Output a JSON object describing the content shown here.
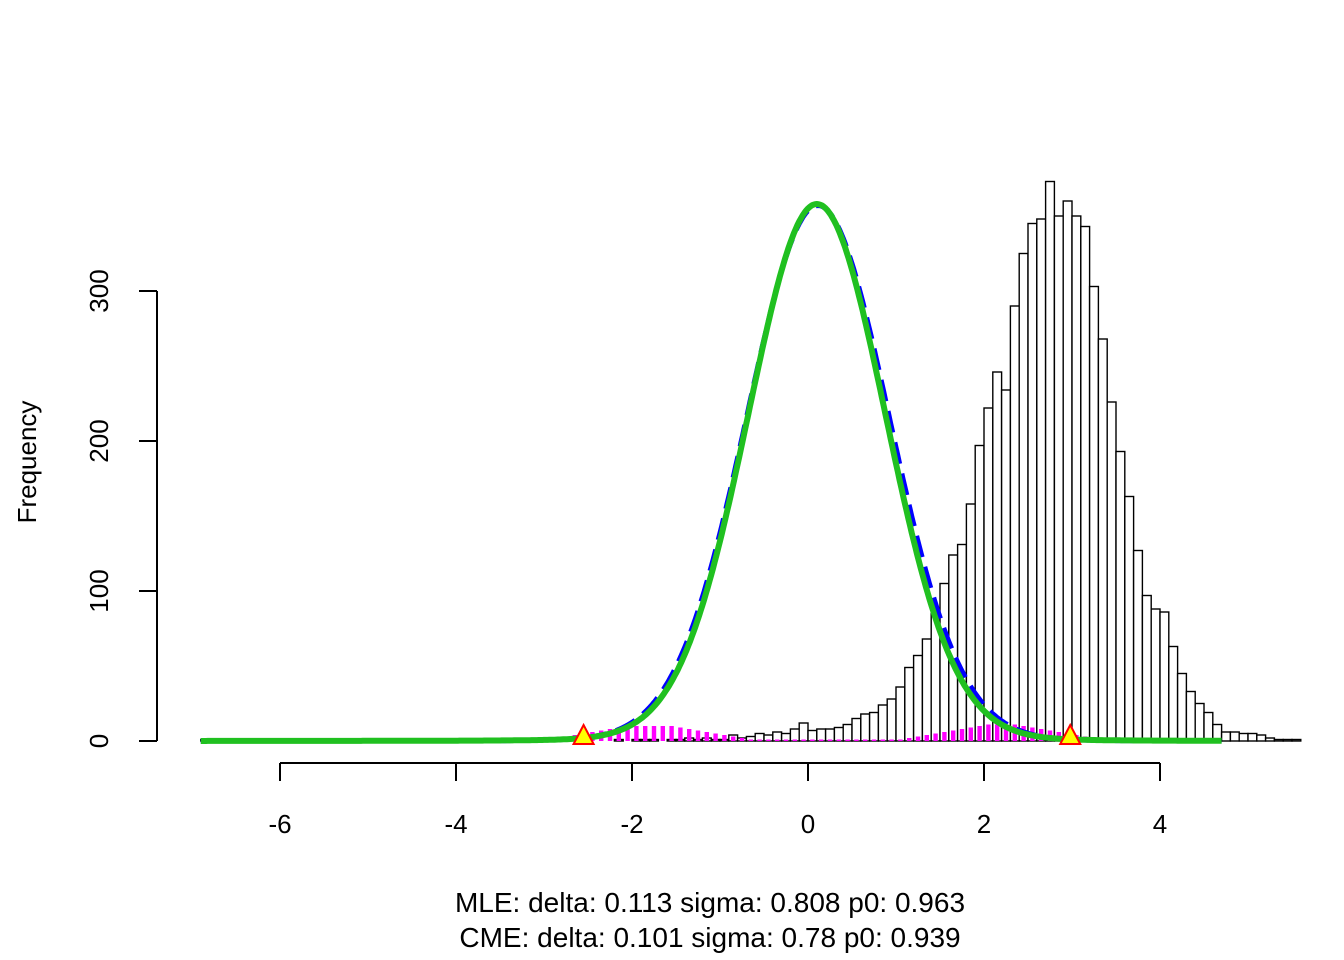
{
  "chart_data": {
    "type": "bar",
    "title": "",
    "xlabel": "",
    "ylabel": "Frequency",
    "xlim": [
      -6.9,
      4.7
    ],
    "ylim": [
      0,
      360
    ],
    "x_ticks": [
      -6,
      -4,
      -2,
      0,
      2,
      4
    ],
    "y_ticks": [
      0,
      100,
      200,
      300
    ],
    "bin_width": 0.1,
    "grid": false,
    "legend": "none",
    "subtitle_lines": [
      "MLE: delta: 0.113 sigma: 0.808 p0: 0.963",
      "CME: delta: 0.101 sigma: 0.78 p0: 0.939"
    ],
    "histogram": {
      "name": "",
      "color": "#000000",
      "bins_start": -6.9,
      "counts": [
        1,
        0,
        0,
        0,
        0,
        0,
        0,
        0,
        0,
        1,
        0,
        0,
        0,
        0,
        0,
        0,
        1,
        0,
        0,
        0,
        0,
        0,
        0,
        0,
        0,
        0,
        1,
        0,
        0,
        0,
        0,
        0,
        1,
        0,
        0,
        0,
        0,
        0,
        0,
        0,
        0,
        0,
        0,
        0,
        0,
        0,
        0,
        1,
        0,
        1,
        1,
        1,
        0,
        1,
        1,
        2,
        1,
        2,
        1,
        1,
        4,
        2,
        3,
        5,
        4,
        6,
        5,
        8,
        12,
        7,
        8,
        8,
        9,
        11,
        15,
        18,
        19,
        24,
        28,
        36,
        49,
        57,
        68,
        86,
        105,
        124,
        131,
        158,
        197,
        222,
        246,
        234,
        290,
        325,
        345,
        348,
        373,
        350,
        360,
        350,
        343,
        303,
        268,
        226,
        193,
        163,
        127,
        97,
        88,
        86,
        63,
        45,
        33,
        25,
        19,
        11,
        6,
        6,
        5,
        5,
        4,
        2,
        1,
        1,
        1,
        0
      ]
    },
    "sub_histogram": {
      "name": "",
      "color": "#ff00ff",
      "bins_start": -3.0,
      "counts": [
        1,
        2,
        3,
        4,
        5,
        6,
        7,
        8,
        9,
        9,
        10,
        10,
        10,
        10,
        10,
        9,
        8,
        7,
        6,
        5,
        4,
        3,
        2,
        1,
        1,
        1,
        1,
        1,
        1,
        1,
        1,
        1,
        1,
        1,
        1,
        1,
        1,
        1,
        1,
        1,
        1,
        2,
        3,
        4,
        5,
        6,
        7,
        8,
        9,
        10,
        11,
        11,
        11,
        11,
        10,
        9,
        8,
        7,
        6,
        5,
        4,
        3,
        2,
        1,
        0
      ]
    },
    "series": [
      {
        "name": "",
        "color": "#0000ff",
        "style": "dashed",
        "type": "curve",
        "center": 0.113,
        "sigma": 0.808,
        "peak": 357
      },
      {
        "name": "",
        "color": "#20c020",
        "style": "solid",
        "type": "curve",
        "center": 0.101,
        "sigma": 0.78,
        "peak": 358
      }
    ],
    "markers": {
      "shape": "triangle",
      "fill": "#ffff00",
      "stroke": "#ff0000",
      "points": [
        {
          "x": -2.55,
          "y": 0
        },
        {
          "x": 2.98,
          "y": 0
        }
      ]
    }
  }
}
